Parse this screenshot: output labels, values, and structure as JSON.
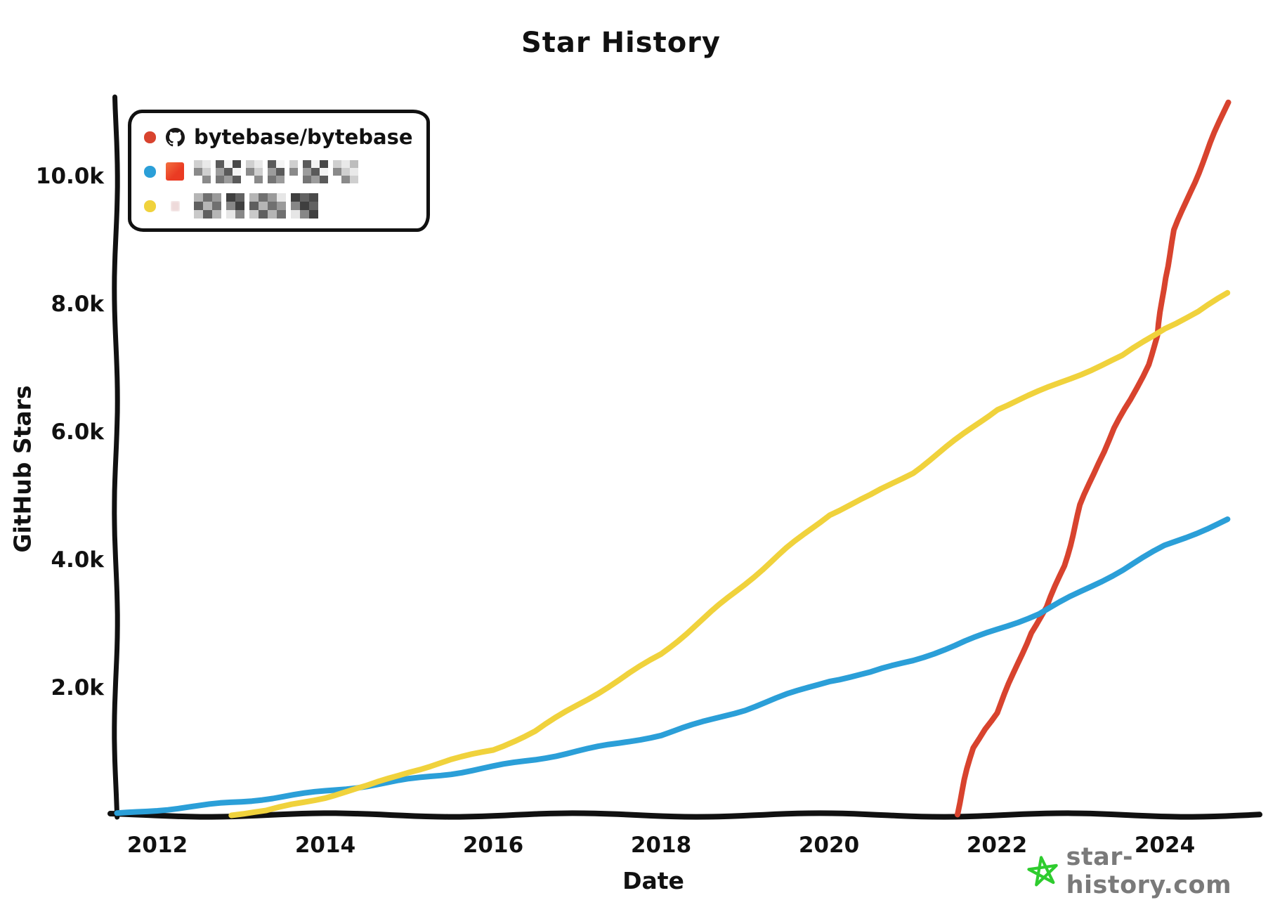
{
  "chart": {
    "title": "Star History",
    "xlabel": "Date",
    "ylabel": "GitHub Stars"
  },
  "legend": {
    "items": [
      {
        "label": "bytebase/bytebase",
        "color": "#d8432e",
        "avatar": "github-octocat-icon",
        "redacted": false
      },
      {
        "label": null,
        "color": "#2b9fd8",
        "avatar": "red-square-avatar",
        "redacted": true,
        "mosaic": {
          "cell": 12,
          "rows": 3,
          "clusters": [
            2,
            3,
            2,
            2,
            1,
            3,
            3
          ],
          "seed": 3,
          "palette": [
            "#e9e9e9",
            "#9c9c9c",
            "#484848",
            "#cfcfcf",
            "#757575",
            "#f4f4f4",
            "#8a8a8a",
            "#bdbdbd",
            "#5a5a5a",
            "#ffffff"
          ]
        }
      },
      {
        "label": null,
        "color": "#f0d23c",
        "avatar": "pink-square-avatar",
        "redacted": true,
        "mosaic": {
          "cell": 13,
          "rows": 3,
          "clusters": [
            3,
            2,
            4,
            3
          ],
          "seed": 7,
          "palette": [
            "#5f5f5f",
            "#9a9a9a",
            "#3f3f3f",
            "#c9c9c9",
            "#707070",
            "#878787",
            "#4a4a4a",
            "#b5b5b5",
            "#e6e6e6",
            "#626262"
          ]
        }
      }
    ]
  },
  "watermark": {
    "text": "star-history.com",
    "icon": "green-star-icon",
    "icon_color": "#2ecc2e",
    "text_color": "#7a7a7a"
  },
  "chart_data": {
    "type": "line",
    "title": "Star History",
    "xlabel": "Date",
    "ylabel": "GitHub Stars",
    "grid": false,
    "legend_position": "top-left",
    "x_axis": {
      "min": 2011.5,
      "max": 2025.1,
      "ticks": [
        {
          "v": 2012,
          "label": "2012"
        },
        {
          "v": 2014,
          "label": "2014"
        },
        {
          "v": 2016,
          "label": "2016"
        },
        {
          "v": 2018,
          "label": "2018"
        },
        {
          "v": 2020,
          "label": "2020"
        },
        {
          "v": 2022,
          "label": "2022"
        },
        {
          "v": 2024,
          "label": "2024"
        }
      ]
    },
    "y_axis": {
      "min": 0,
      "max": 11200,
      "ticks": [
        {
          "v": 2000,
          "label": "2.0k"
        },
        {
          "v": 4000,
          "label": "4.0k"
        },
        {
          "v": 6000,
          "label": "6.0k"
        },
        {
          "v": 8000,
          "label": "8.0k"
        },
        {
          "v": 10000,
          "label": "10.0k"
        }
      ]
    },
    "series": [
      {
        "name": "bytebase/bytebase",
        "color": "#d8432e",
        "points": [
          [
            2021.52,
            10
          ],
          [
            2021.62,
            550
          ],
          [
            2021.72,
            1050
          ],
          [
            2021.85,
            1350
          ],
          [
            2022.0,
            1600
          ],
          [
            2022.2,
            2200
          ],
          [
            2022.4,
            2850
          ],
          [
            2022.6,
            3250
          ],
          [
            2022.8,
            3900
          ],
          [
            2023.0,
            4850
          ],
          [
            2023.2,
            5500
          ],
          [
            2023.4,
            6050
          ],
          [
            2023.6,
            6500
          ],
          [
            2023.8,
            7050
          ],
          [
            2023.92,
            7500
          ],
          [
            2024.0,
            8400
          ],
          [
            2024.12,
            9150
          ],
          [
            2024.3,
            9750
          ],
          [
            2024.5,
            10350
          ],
          [
            2024.75,
            11150
          ]
        ]
      },
      {
        "name": "redacted-blue-repo",
        "color": "#2b9fd8",
        "points": [
          [
            2011.52,
            15
          ],
          [
            2012,
            80
          ],
          [
            2012.5,
            140
          ],
          [
            2013,
            210
          ],
          [
            2013.5,
            290
          ],
          [
            2014,
            370
          ],
          [
            2014.5,
            460
          ],
          [
            2015,
            555
          ],
          [
            2015.5,
            650
          ],
          [
            2016,
            755
          ],
          [
            2016.5,
            870
          ],
          [
            2017,
            1000
          ],
          [
            2017.5,
            1120
          ],
          [
            2018,
            1255
          ],
          [
            2018.5,
            1450
          ],
          [
            2019,
            1650
          ],
          [
            2019.5,
            1880
          ],
          [
            2020,
            2100
          ],
          [
            2020.5,
            2230
          ],
          [
            2021,
            2420
          ],
          [
            2021.5,
            2650
          ],
          [
            2022,
            2900
          ],
          [
            2022.5,
            3150
          ],
          [
            2023,
            3490
          ],
          [
            2023.5,
            3840
          ],
          [
            2024,
            4210
          ],
          [
            2024.75,
            4620
          ]
        ]
      },
      {
        "name": "redacted-yellow-repo",
        "color": "#f0d23c",
        "points": [
          [
            2012.88,
            10
          ],
          [
            2013.3,
            60
          ],
          [
            2013.6,
            160
          ],
          [
            2014,
            280
          ],
          [
            2014.5,
            450
          ],
          [
            2015,
            680
          ],
          [
            2015.5,
            860
          ],
          [
            2016,
            1020
          ],
          [
            2016.5,
            1310
          ],
          [
            2017,
            1720
          ],
          [
            2017.5,
            2110
          ],
          [
            2018,
            2520
          ],
          [
            2018.5,
            3060
          ],
          [
            2019,
            3620
          ],
          [
            2019.5,
            4170
          ],
          [
            2020,
            4700
          ],
          [
            2020.5,
            5000
          ],
          [
            2021,
            5360
          ],
          [
            2021.5,
            5850
          ],
          [
            2022,
            6350
          ],
          [
            2022.5,
            6620
          ],
          [
            2023,
            6900
          ],
          [
            2023.5,
            7180
          ],
          [
            2024,
            7620
          ],
          [
            2024.4,
            7870
          ],
          [
            2024.75,
            8160
          ]
        ]
      }
    ]
  }
}
